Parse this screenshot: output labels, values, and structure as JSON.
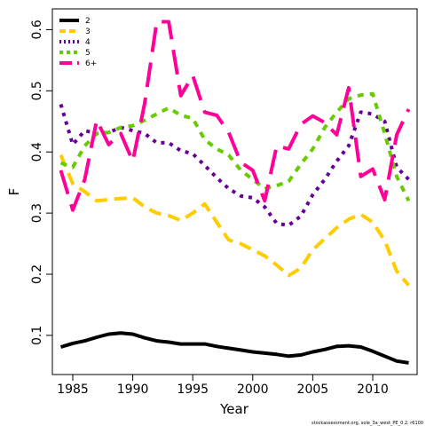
{
  "chart_data": {
    "type": "line",
    "xlabel": "Year",
    "ylabel": "F",
    "xlim": [
      1983.3,
      2013.7
    ],
    "ylim": [
      0.036,
      0.634
    ],
    "xticks": [
      1985,
      1990,
      1995,
      2000,
      2005,
      2010
    ],
    "yticks": [
      0.1,
      0.2,
      0.3,
      0.4,
      0.5,
      0.6
    ],
    "grid": false,
    "legend_position": "top-left",
    "caption": "stockassessment.org, sole_3a_west_PE_0.2, r6100",
    "x": [
      1984,
      1985,
      1986,
      1987,
      1988,
      1989,
      1990,
      1991,
      1992,
      1993,
      1994,
      1995,
      1996,
      1997,
      1998,
      1999,
      2000,
      2001,
      2002,
      2003,
      2004,
      2005,
      2006,
      2007,
      2008,
      2009,
      2010,
      2011,
      2012,
      2013
    ],
    "series": [
      {
        "name": "2",
        "color": "#000000",
        "dash": "solid",
        "values": [
          0.081,
          0.087,
          0.091,
          0.097,
          0.102,
          0.104,
          0.102,
          0.096,
          0.091,
          0.089,
          0.086,
          0.086,
          0.086,
          0.082,
          0.079,
          0.076,
          0.073,
          0.071,
          0.069,
          0.066,
          0.068,
          0.073,
          0.077,
          0.082,
          0.083,
          0.081,
          0.074,
          0.066,
          0.058,
          0.055
        ]
      },
      {
        "name": "3",
        "color": "#FFCC00",
        "dash": "14,8",
        "values": [
          0.395,
          0.348,
          0.335,
          0.32,
          0.322,
          0.324,
          0.325,
          0.31,
          0.3,
          0.296,
          0.288,
          0.3,
          0.315,
          0.285,
          0.256,
          0.25,
          0.24,
          0.23,
          0.215,
          0.198,
          0.21,
          0.24,
          0.258,
          0.276,
          0.29,
          0.298,
          0.285,
          0.255,
          0.205,
          0.182
        ]
      },
      {
        "name": "4",
        "color": "#660099",
        "dash": "4,6",
        "values": [
          0.478,
          0.412,
          0.435,
          0.43,
          0.432,
          0.44,
          0.435,
          0.43,
          0.415,
          0.415,
          0.402,
          0.397,
          0.378,
          0.358,
          0.34,
          0.328,
          0.325,
          0.31,
          0.283,
          0.28,
          0.295,
          0.33,
          0.355,
          0.385,
          0.41,
          0.465,
          0.462,
          0.45,
          0.375,
          0.355
        ]
      },
      {
        "name": "5",
        "color": "#66CC00",
        "dash": "7,7",
        "values": [
          0.382,
          0.375,
          0.41,
          0.43,
          0.432,
          0.44,
          0.443,
          0.452,
          0.462,
          0.472,
          0.46,
          0.455,
          0.42,
          0.405,
          0.395,
          0.37,
          0.355,
          0.34,
          0.345,
          0.352,
          0.38,
          0.405,
          0.44,
          0.465,
          0.487,
          0.493,
          0.495,
          0.43,
          0.36,
          0.32
        ]
      },
      {
        "name": "6+",
        "color": "#FF0099",
        "dash": "28,12",
        "values": [
          0.37,
          0.305,
          0.355,
          0.452,
          0.412,
          0.43,
          0.385,
          0.48,
          0.613,
          0.613,
          0.492,
          0.525,
          0.465,
          0.46,
          0.432,
          0.383,
          0.37,
          0.32,
          0.41,
          0.405,
          0.445,
          0.459,
          0.448,
          0.428,
          0.505,
          0.36,
          0.372,
          0.322,
          0.428,
          0.47
        ]
      }
    ]
  }
}
